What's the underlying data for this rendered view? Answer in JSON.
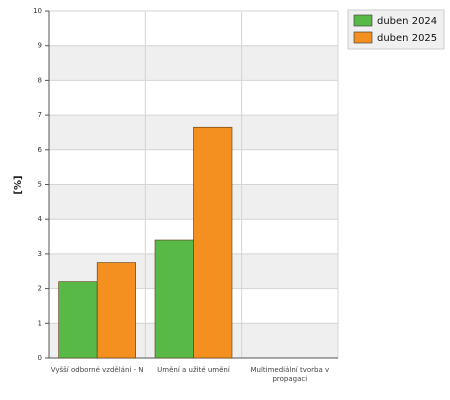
{
  "chart_data": {
    "type": "bar",
    "y_label": "[%]",
    "categories": [
      "Vyšší odborné vzdělání - N",
      "Umění a užité umění",
      "Multimediální tvorba v propagaci"
    ],
    "series": [
      {
        "name": "duben 2024",
        "color": "#58b947",
        "values": [
          2.2,
          3.4,
          0
        ]
      },
      {
        "name": "duben 2025",
        "color": "#f39020",
        "values": [
          2.75,
          6.65,
          0
        ]
      }
    ],
    "ylim": [
      0,
      10
    ],
    "yticks": [
      0,
      1,
      2,
      3,
      4,
      5,
      6,
      7,
      8,
      9,
      10
    ],
    "grid": true,
    "legend": "top-right"
  }
}
